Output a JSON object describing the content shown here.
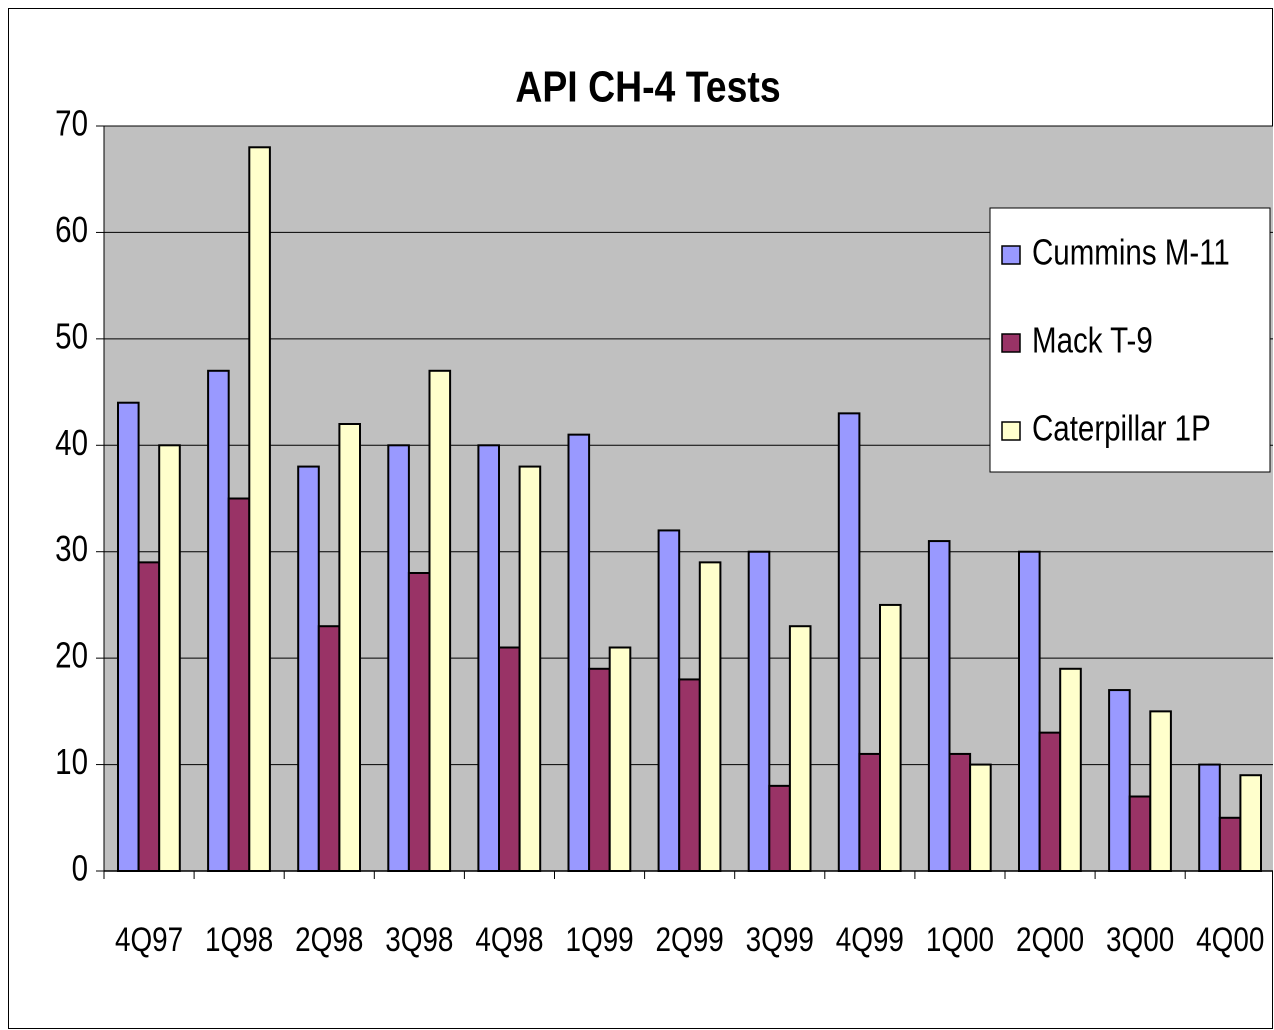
{
  "chart_data": {
    "type": "bar",
    "title": "API CH-4 Tests",
    "categories": [
      "4Q97",
      "1Q98",
      "2Q98",
      "3Q98",
      "4Q98",
      "1Q99",
      "2Q99",
      "3Q99",
      "4Q99",
      "1Q00",
      "2Q00",
      "3Q00",
      "4Q00"
    ],
    "series": [
      {
        "name": "Cummins M-11",
        "color": "#9999ff",
        "values": [
          44,
          47,
          38,
          40,
          40,
          41,
          32,
          30,
          43,
          31,
          30,
          17,
          10
        ]
      },
      {
        "name": "Mack T-9",
        "color": "#993366",
        "values": [
          29,
          35,
          23,
          28,
          21,
          19,
          18,
          8,
          11,
          11,
          13,
          7,
          5
        ]
      },
      {
        "name": "Caterpillar 1P",
        "color": "#ffffcc",
        "values": [
          40,
          68,
          42,
          47,
          38,
          21,
          29,
          23,
          25,
          10,
          19,
          15,
          9
        ]
      }
    ],
    "ylim": [
      0,
      70
    ],
    "yticks": [
      0,
      10,
      20,
      30,
      40,
      50,
      60,
      70
    ],
    "grid": true,
    "legend": "upper right"
  }
}
